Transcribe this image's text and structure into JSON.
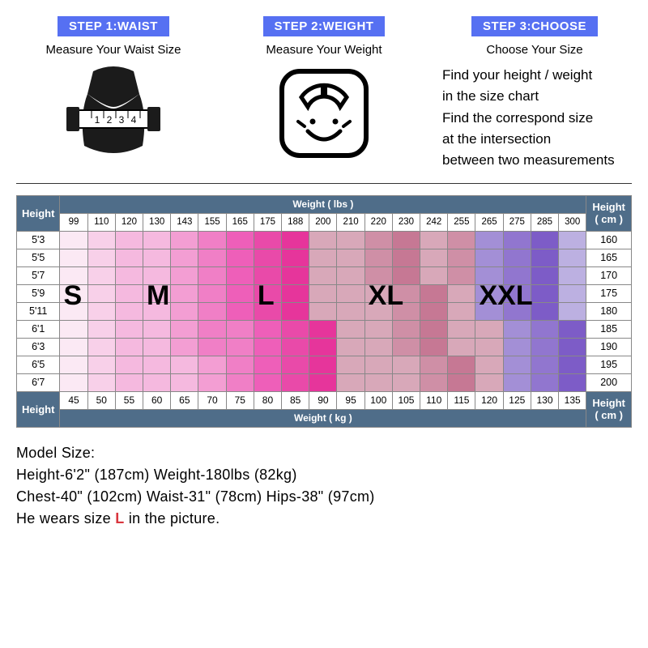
{
  "colors": {
    "step_tag_bg": "#5670f2",
    "header_bg": "#4f6d89",
    "s_colors": [
      "#fbe9f4",
      "#f8d0e9",
      "#f5b9df"
    ],
    "m_colors": [
      "#f5b9df",
      "#f39ed3",
      "#f07fc6"
    ],
    "l_colors": [
      "#ee5fb9",
      "#e94aa9",
      "#e6359b",
      "#d8a8b9"
    ],
    "xl_colors": [
      "#d8a8b9",
      "#cf8fa6",
      "#c67894"
    ],
    "xxl_colors": [
      "#a38fd6",
      "#9176cf",
      "#7d5cc7",
      "#bcb0e1"
    ]
  },
  "steps": [
    {
      "tag": "STEP 1:WAIST",
      "sub": "Measure Your Waist Size"
    },
    {
      "tag": "STEP 2:WEIGHT",
      "sub": "Measure Your Weight"
    },
    {
      "tag": "STEP 3:CHOOSE",
      "sub": "Choose Your Size",
      "desc_lines": [
        "Find your height  / weight",
        "in the size chart",
        "Find the correspond size",
        "at the intersection",
        "between  two measurements"
      ]
    }
  ],
  "chart": {
    "height_label": "Height",
    "weight_lbs_label": "Weight ( lbs )",
    "weight_kg_label": "Weight ( kg )",
    "height_cm_label": "Height\n( cm )",
    "lbs": [
      99,
      110,
      120,
      130,
      143,
      155,
      165,
      175,
      188,
      200,
      210,
      220,
      230,
      242,
      255,
      265,
      275,
      285,
      300
    ],
    "kg": [
      45,
      50,
      55,
      60,
      65,
      70,
      75,
      80,
      85,
      90,
      95,
      100,
      105,
      110,
      115,
      120,
      125,
      130,
      135
    ],
    "heights_ft": [
      "5'3",
      "5'5",
      "5'7",
      "5'9",
      "5'11",
      "6'1",
      "6'3",
      "6'5",
      "6'7"
    ],
    "heights_cm": [
      160,
      165,
      170,
      175,
      180,
      185,
      190,
      195,
      200
    ],
    "size_labels": [
      "S",
      "M",
      "L",
      "XL",
      "XXL"
    ],
    "size_label_cols": [
      0,
      3,
      7,
      11,
      15
    ],
    "grid_rows": [
      [
        0,
        0,
        0,
        1,
        1,
        1,
        2,
        2,
        2,
        2,
        3,
        3,
        3,
        3,
        3,
        4,
        4,
        4,
        4
      ],
      [
        0,
        0,
        0,
        1,
        1,
        1,
        2,
        2,
        2,
        2,
        3,
        3,
        3,
        3,
        3,
        4,
        4,
        4,
        4
      ],
      [
        0,
        0,
        0,
        1,
        1,
        1,
        2,
        2,
        2,
        2,
        3,
        3,
        3,
        3,
        3,
        4,
        4,
        4,
        4
      ],
      [
        0,
        0,
        0,
        1,
        1,
        1,
        2,
        2,
        2,
        2,
        2,
        3,
        3,
        3,
        3,
        4,
        4,
        4,
        4
      ],
      [
        0,
        0,
        0,
        1,
        1,
        1,
        2,
        2,
        2,
        2,
        2,
        3,
        3,
        3,
        3,
        4,
        4,
        4,
        4
      ],
      [
        0,
        0,
        0,
        1,
        1,
        1,
        1,
        2,
        2,
        2,
        2,
        3,
        3,
        3,
        3,
        3,
        4,
        4,
        4
      ],
      [
        0,
        0,
        0,
        1,
        1,
        1,
        1,
        2,
        2,
        2,
        2,
        3,
        3,
        3,
        3,
        3,
        4,
        4,
        4
      ],
      [
        0,
        0,
        0,
        0,
        1,
        1,
        1,
        2,
        2,
        2,
        2,
        2,
        3,
        3,
        3,
        3,
        4,
        4,
        4
      ],
      [
        0,
        0,
        0,
        0,
        1,
        1,
        1,
        2,
        2,
        2,
        2,
        2,
        3,
        3,
        3,
        3,
        4,
        4,
        4
      ]
    ],
    "shade_rows": [
      [
        0,
        1,
        2,
        0,
        1,
        2,
        0,
        1,
        2,
        3,
        0,
        1,
        2,
        0,
        1,
        0,
        1,
        2,
        3
      ],
      [
        0,
        1,
        2,
        0,
        1,
        2,
        0,
        1,
        2,
        3,
        0,
        1,
        2,
        0,
        1,
        0,
        1,
        2,
        3
      ],
      [
        0,
        1,
        2,
        0,
        1,
        2,
        0,
        1,
        2,
        3,
        0,
        1,
        2,
        0,
        1,
        0,
        1,
        2,
        3
      ],
      [
        0,
        1,
        2,
        0,
        1,
        2,
        0,
        1,
        2,
        3,
        3,
        0,
        1,
        2,
        0,
        0,
        1,
        2,
        3
      ],
      [
        0,
        1,
        2,
        0,
        1,
        2,
        0,
        1,
        2,
        3,
        3,
        0,
        1,
        2,
        0,
        0,
        1,
        2,
        3
      ],
      [
        0,
        1,
        2,
        0,
        1,
        2,
        2,
        0,
        1,
        2,
        3,
        0,
        1,
        2,
        0,
        0,
        0,
        1,
        2
      ],
      [
        0,
        1,
        2,
        0,
        1,
        2,
        2,
        0,
        1,
        2,
        3,
        0,
        1,
        2,
        0,
        0,
        0,
        1,
        2
      ],
      [
        0,
        1,
        2,
        2,
        0,
        1,
        2,
        0,
        1,
        2,
        3,
        3,
        0,
        1,
        2,
        0,
        0,
        1,
        2
      ],
      [
        0,
        1,
        2,
        2,
        0,
        1,
        2,
        0,
        1,
        2,
        3,
        3,
        0,
        1,
        2,
        0,
        0,
        1,
        2
      ]
    ]
  },
  "model": {
    "title": "Model Size:",
    "l1": "Height-6'2\" (187cm) Weight-180lbs (82kg)",
    "l2": "Chest-40\" (102cm) Waist-31\" (78cm) Hips-38\" (97cm)",
    "l3a": "He wears size ",
    "l3b": "L",
    "l3c": " in the picture."
  }
}
